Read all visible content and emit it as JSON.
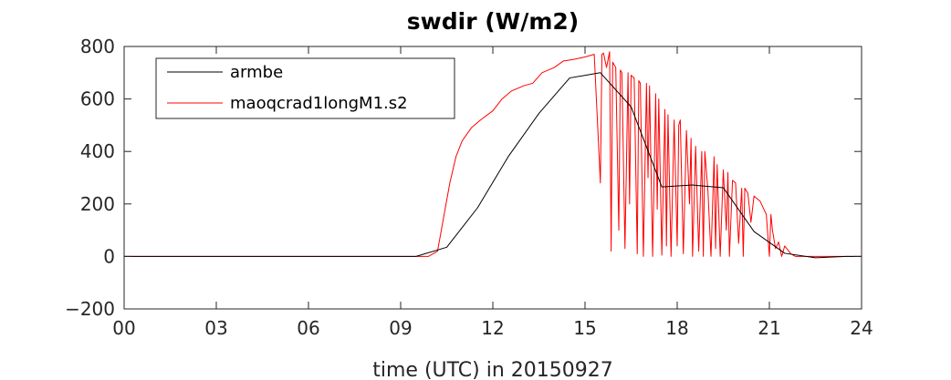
{
  "chart_data": {
    "type": "line",
    "title": "swdir  (W/m2)",
    "xlabel": "time (UTC) in 20150927",
    "ylabel": "",
    "xlim": [
      0,
      24
    ],
    "ylim": [
      -200,
      800
    ],
    "x_tick_labels": [
      "00",
      "03",
      "06",
      "09",
      "12",
      "15",
      "18",
      "21",
      "24"
    ],
    "x_tick_values": [
      0,
      3,
      6,
      9,
      12,
      15,
      18,
      21,
      24
    ],
    "y_tick_values": [
      -200,
      0,
      200,
      400,
      600,
      800
    ],
    "y_tick_labels": [
      "−200",
      "0",
      "200",
      "400",
      "600",
      "800"
    ],
    "grid": false,
    "legend_position": "top-left",
    "series": [
      {
        "name": "armbe",
        "color": "#000000",
        "x": [
          0,
          1,
          2,
          3,
          4,
          5,
          6,
          7,
          8,
          9,
          9.5,
          10.5,
          11.5,
          12.5,
          13.5,
          14.5,
          15.5,
          16.5,
          17.5,
          18.5,
          19.5,
          20.5,
          21.5,
          22.5,
          23.5,
          24
        ],
        "y": [
          0,
          0,
          0,
          0,
          0,
          0,
          0,
          0,
          0,
          0,
          0,
          35,
          185,
          380,
          545,
          680,
          700,
          570,
          265,
          272,
          262,
          95,
          12,
          -5,
          0,
          0
        ]
      },
      {
        "name": "maoqcrad1longM1.s2",
        "color": "#ff0000",
        "x": [
          0,
          9.9,
          10.2,
          10.4,
          10.6,
          10.8,
          11.0,
          11.3,
          11.6,
          12.0,
          12.3,
          12.6,
          13.0,
          13.3,
          13.6,
          14.0,
          14.3,
          14.6,
          15.0,
          15.3,
          15.5,
          15.55,
          15.6,
          15.7,
          15.8,
          15.85,
          15.9,
          16.0,
          16.1,
          16.15,
          16.2,
          16.3,
          16.4,
          16.45,
          16.5,
          16.6,
          16.7,
          16.75,
          16.8,
          16.9,
          17.0,
          17.05,
          17.1,
          17.2,
          17.3,
          17.35,
          17.4,
          17.5,
          17.6,
          17.65,
          17.7,
          17.8,
          17.9,
          18.0,
          18.05,
          18.1,
          18.2,
          18.3,
          18.4,
          18.45,
          18.5,
          18.6,
          18.7,
          18.8,
          18.85,
          18.9,
          19.0,
          19.1,
          19.2,
          19.25,
          19.3,
          19.4,
          19.5,
          19.6,
          19.65,
          19.7,
          19.8,
          19.9,
          20.0,
          20.1,
          20.15,
          20.2,
          20.3,
          20.4,
          20.5,
          20.7,
          20.9,
          21.0,
          21.05,
          21.1,
          21.2,
          21.3,
          21.4,
          21.5,
          21.7,
          21.85,
          22.0,
          24
        ],
        "y": [
          0,
          0,
          20,
          150,
          280,
          380,
          440,
          490,
          520,
          555,
          600,
          630,
          650,
          660,
          700,
          720,
          745,
          750,
          760,
          770,
          280,
          770,
          775,
          720,
          780,
          20,
          740,
          720,
          100,
          710,
          700,
          30,
          700,
          200,
          690,
          680,
          10,
          670,
          660,
          0,
          660,
          300,
          650,
          0,
          620,
          180,
          600,
          5,
          560,
          40,
          540,
          0,
          520,
          40,
          500,
          520,
          10,
          480,
          200,
          450,
          0,
          420,
          20,
          400,
          0,
          400,
          250,
          0,
          380,
          30,
          350,
          0,
          330,
          100,
          320,
          0,
          290,
          280,
          50,
          260,
          0,
          260,
          240,
          130,
          230,
          210,
          160,
          0,
          160,
          100,
          30,
          55,
          0,
          40,
          10,
          0,
          0,
          0
        ]
      }
    ]
  }
}
